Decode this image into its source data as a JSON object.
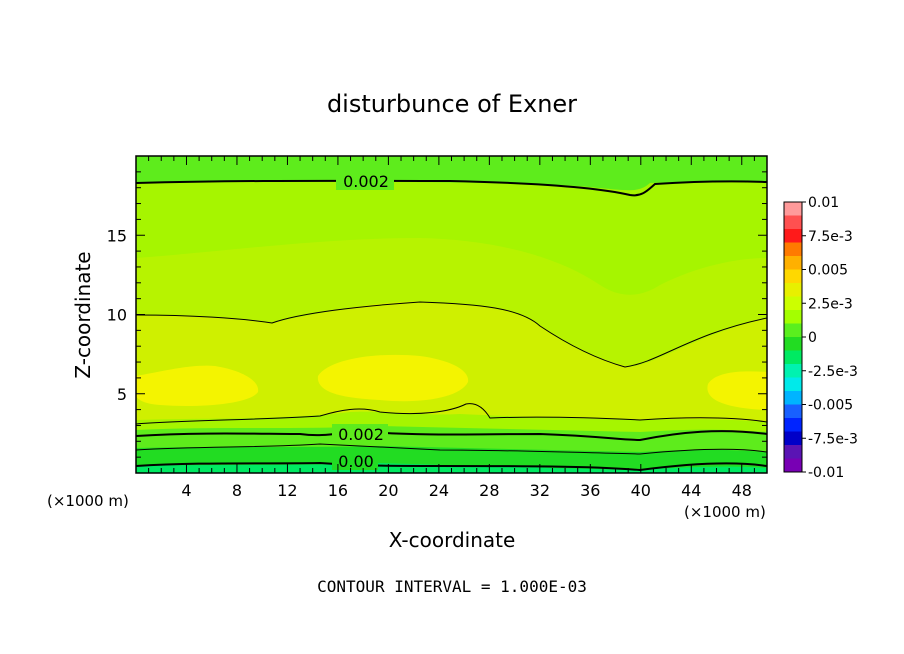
{
  "chart_data": {
    "type": "contour",
    "title": "disturbunce of Exner",
    "xlabel": "X-coordinate",
    "ylabel": "Z-coordinate",
    "x_unit": "(×1000 m)",
    "x_unit_right": "(×1000 m)",
    "xlim": [
      0,
      50
    ],
    "ylim": [
      0,
      20
    ],
    "x_ticks": [
      4,
      8,
      12,
      16,
      20,
      24,
      28,
      32,
      36,
      40,
      44,
      48
    ],
    "y_ticks": [
      5,
      10,
      15
    ],
    "contour_interval_text": "CONTOUR INTERVAL = 1.000E-03",
    "contour_labels": [
      {
        "text": "0.002",
        "x": 18,
        "z": 18.2
      },
      {
        "text": "0.002",
        "x": 17.7,
        "z": 2.4
      },
      {
        "text": "0.00",
        "x": 17.2,
        "z": 0.7
      }
    ],
    "colorbar": {
      "labels": [
        "0.01",
        "7.5e-3",
        "0.005",
        "2.5e-3",
        "0",
        "-2.5e-3",
        "-0.005",
        "-7.5e-3",
        "-0.01"
      ],
      "colors": [
        "#ff9a9a",
        "#ff5050",
        "#ff1a1a",
        "#ff7a00",
        "#ffb000",
        "#ffd800",
        "#e8f000",
        "#ccff00",
        "#a4ff00",
        "#5aef1e",
        "#22dc22",
        "#00ea62",
        "#00f2b0",
        "#00eaea",
        "#00b4ff",
        "#1860ff",
        "#0024ff",
        "#0000c8",
        "#5a14b4",
        "#7800b4"
      ]
    }
  }
}
